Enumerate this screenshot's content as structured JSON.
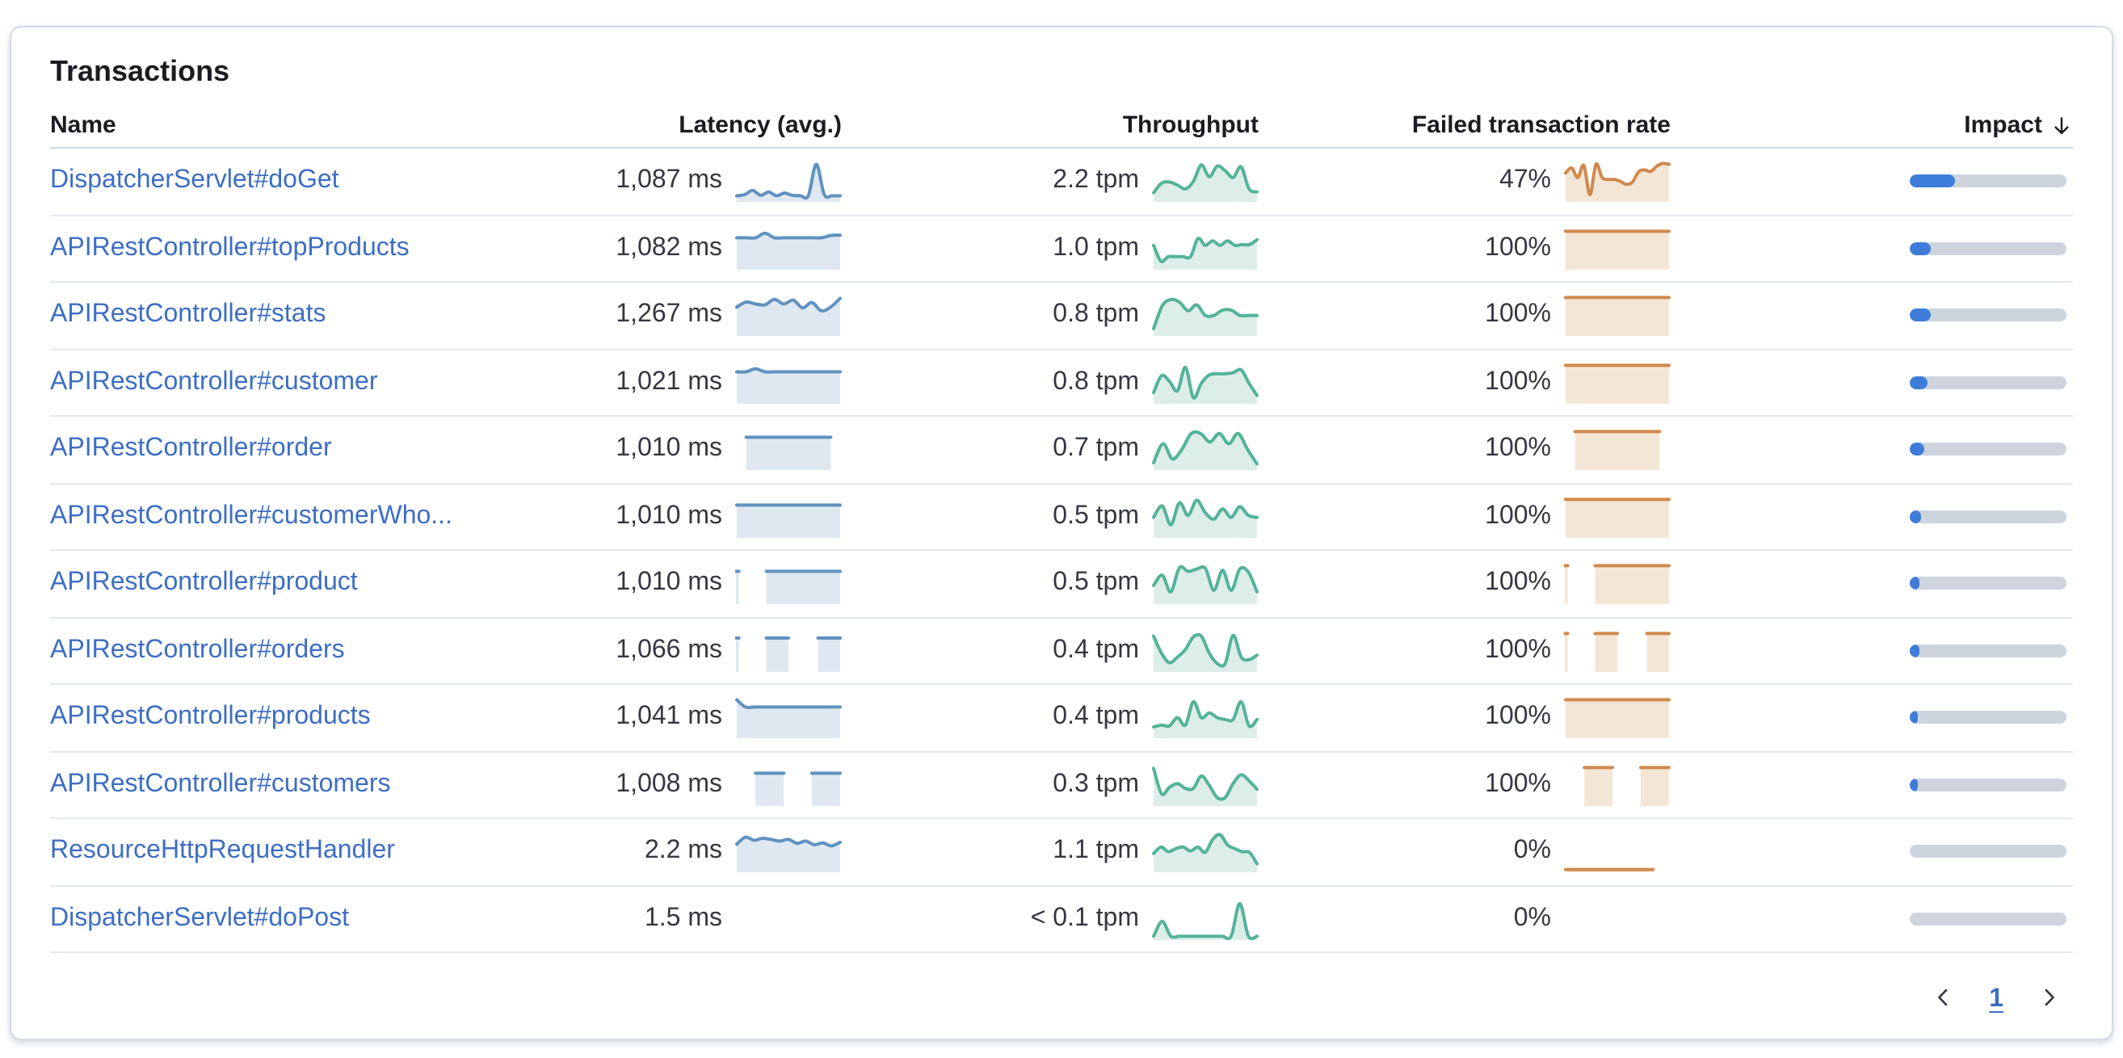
{
  "card": {
    "title": "Transactions"
  },
  "table": {
    "headers": {
      "name": "Name",
      "latency": "Latency (avg.)",
      "throughput": "Throughput",
      "failed": "Failed transaction rate",
      "impact": "Impact"
    },
    "sort": {
      "column": "impact",
      "direction": "descending",
      "icon": "arrow-down"
    },
    "rows": [
      {
        "name": "DispatcherServlet#doGet",
        "latency": "1,087 ms",
        "latency_spark": [
          0.12,
          0.15,
          0.26,
          0.13,
          0.22,
          0.12,
          0.19,
          0.13,
          0.12,
          0.12,
          0.95,
          0.15,
          0.12,
          0.12
        ],
        "throughput": "2.2 tpm",
        "throughput_spark": [
          0.2,
          0.45,
          0.48,
          0.4,
          0.3,
          0.5,
          0.93,
          0.62,
          0.9,
          0.78,
          0.6,
          0.88,
          0.3,
          0.22
        ],
        "failed": "47%",
        "failed_spark": [
          0.72,
          0.85,
          0.6,
          0.92,
          0.15,
          0.95,
          0.6,
          0.55,
          0.55,
          0.5,
          0.42,
          0.48,
          0.75,
          0.8,
          0.76,
          0.9,
          0.97,
          0.95
        ],
        "impact": 29
      },
      {
        "name": "APIRestController#topProducts",
        "latency": "1,082 ms",
        "latency_spark": [
          0.8,
          0.8,
          0.8,
          0.92,
          0.8,
          0.8,
          0.8,
          0.8,
          0.8,
          0.8,
          0.86,
          0.87
        ],
        "throughput": "1.0 tpm",
        "throughput_spark": [
          0.6,
          0.18,
          0.3,
          0.3,
          0.3,
          0.3,
          0.78,
          0.6,
          0.72,
          0.6,
          0.72,
          0.6,
          0.62,
          0.62,
          0.75
        ],
        "failed": "100%",
        "failed_spark": [
          0.97,
          0.97,
          0.97,
          0.97,
          0.97,
          0.97,
          0.97,
          0.97,
          0.97,
          0.97,
          0.97,
          0.97
        ],
        "impact": 13
      },
      {
        "name": "APIRestController#stats",
        "latency": "1,267 ms",
        "latency_spark": [
          0.72,
          0.85,
          0.8,
          0.78,
          0.92,
          0.8,
          0.9,
          0.7,
          0.84,
          0.62,
          0.72,
          0.95
        ],
        "throughput": "0.8 tpm",
        "throughput_spark": [
          0.15,
          0.75,
          0.92,
          0.85,
          0.62,
          0.78,
          0.5,
          0.5,
          0.64,
          0.64,
          0.5,
          0.5,
          0.5
        ],
        "failed": "100%",
        "failed_spark": [
          0.97,
          0.97,
          0.97,
          0.97,
          0.97,
          0.97,
          0.97,
          0.97,
          0.97,
          0.97,
          0.97,
          0.97
        ],
        "impact": 13
      },
      {
        "name": "APIRestController#customer",
        "latency": "1,021 ms",
        "latency_spark": [
          0.8,
          0.8,
          0.88,
          0.8,
          0.8,
          0.8,
          0.8,
          0.8,
          0.8,
          0.8,
          0.8,
          0.8
        ],
        "throughput": "0.8 tpm",
        "throughput_spark": [
          0.25,
          0.7,
          0.55,
          0.3,
          0.92,
          0.12,
          0.5,
          0.72,
          0.75,
          0.75,
          0.78,
          0.85,
          0.5,
          0.18
        ],
        "failed": "100%",
        "failed_spark": [
          0.97,
          0.97,
          0.97,
          0.97,
          0.97,
          0.97,
          0.97,
          0.97,
          0.97,
          0.97,
          0.97,
          0.97
        ],
        "impact": 11.5
      },
      {
        "name": "APIRestController#order",
        "latency": "1,010 ms",
        "latency_spark": [
          null,
          0.82,
          0.82,
          0.82,
          0.82,
          0.82,
          0.82,
          0.82,
          0.82,
          0.82,
          0.82,
          null
        ],
        "throughput": "0.7 tpm",
        "throughput_spark": [
          0.15,
          0.65,
          0.25,
          0.5,
          0.92,
          0.92,
          0.7,
          0.92,
          0.65,
          0.92,
          0.5,
          0.12
        ],
        "failed": "100%",
        "failed_spark": [
          null,
          0.97,
          0.97,
          0.97,
          0.97,
          0.97,
          0.97,
          0.97,
          0.97,
          0.97,
          0.97,
          null
        ],
        "impact": 9
      },
      {
        "name": "APIRestController#customerWho...",
        "latency": "1,010 ms",
        "latency_spark": [
          0.82,
          0.82,
          0.82,
          0.82,
          0.82,
          0.82,
          0.82,
          0.82,
          0.82,
          0.82,
          0.82,
          0.82
        ],
        "throughput": "0.5 tpm",
        "throughput_spark": [
          0.5,
          0.8,
          0.3,
          0.88,
          0.55,
          0.95,
          0.62,
          0.45,
          0.72,
          0.5,
          0.78,
          0.55,
          0.5
        ],
        "failed": "100%",
        "failed_spark": [
          0.97,
          0.97,
          0.97,
          0.97,
          0.97,
          0.97,
          0.97,
          0.97,
          0.97,
          0.97,
          0.97,
          0.97
        ],
        "impact": 7
      },
      {
        "name": "APIRestController#product",
        "latency": "1,010 ms",
        "latency_spark": [
          0.82,
          null,
          null,
          null,
          0.82,
          0.82,
          0.82,
          0.82,
          0.82,
          0.82,
          0.82,
          0.82,
          0.82,
          0.82,
          0.82
        ],
        "throughput": "0.5 tpm",
        "throughput_spark": [
          0.45,
          0.72,
          0.28,
          0.92,
          0.82,
          0.88,
          0.9,
          0.32,
          0.85,
          0.32,
          0.88,
          0.8,
          0.28
        ],
        "failed": "100%",
        "failed_spark": [
          0.97,
          null,
          null,
          null,
          0.97,
          0.97,
          0.97,
          0.97,
          0.97,
          0.97,
          0.97,
          0.97,
          0.97,
          0.97,
          0.97
        ],
        "impact": 6.5
      },
      {
        "name": "APIRestController#orders",
        "latency": "1,066 ms",
        "latency_spark": [
          0.85,
          null,
          null,
          null,
          0.85,
          0.85,
          0.85,
          0.85,
          null,
          null,
          null,
          0.85,
          0.85,
          0.85,
          0.85
        ],
        "throughput": "0.4 tpm",
        "throughput_spark": [
          0.9,
          0.45,
          0.2,
          0.35,
          0.55,
          0.88,
          0.9,
          0.45,
          0.18,
          0.18,
          0.92,
          0.35,
          0.28,
          0.4
        ],
        "failed": "100%",
        "failed_spark": [
          0.97,
          null,
          null,
          null,
          0.97,
          0.97,
          0.97,
          0.97,
          null,
          null,
          null,
          0.97,
          0.97,
          0.97,
          0.97
        ],
        "impact": 6
      },
      {
        "name": "APIRestController#products",
        "latency": "1,041 ms",
        "latency_spark": [
          0.97,
          0.78,
          0.78,
          0.78,
          0.78,
          0.78,
          0.78,
          0.78,
          0.78,
          0.78,
          0.78,
          0.78,
          0.78
        ],
        "throughput": "0.4 tpm",
        "throughput_spark": [
          0.25,
          0.3,
          0.28,
          0.5,
          0.3,
          0.92,
          0.5,
          0.62,
          0.5,
          0.45,
          0.45,
          0.92,
          0.28,
          0.45
        ],
        "failed": "100%",
        "failed_spark": [
          0.97,
          0.97,
          0.97,
          0.97,
          0.97,
          0.97,
          0.97,
          0.97,
          0.97,
          0.97,
          0.97,
          0.97
        ],
        "impact": 5.5
      },
      {
        "name": "APIRestController#customers",
        "latency": "1,008 ms",
        "latency_spark": [
          null,
          null,
          0.82,
          0.82,
          0.82,
          0.82,
          null,
          null,
          0.82,
          0.82,
          0.82,
          0.82
        ],
        "throughput": "0.3 tpm",
        "throughput_spark": [
          0.95,
          0.28,
          0.45,
          0.55,
          0.42,
          0.42,
          0.75,
          0.5,
          0.18,
          0.18,
          0.55,
          0.78,
          0.62,
          0.4
        ],
        "failed": "100%",
        "failed_spark": [
          null,
          null,
          0.97,
          0.97,
          0.97,
          0.97,
          null,
          null,
          0.97,
          0.97,
          0.97,
          0.97
        ],
        "impact": 5
      },
      {
        "name": "ResourceHttpRequestHandler",
        "latency": "2.2 ms",
        "latency_spark": [
          0.7,
          0.88,
          0.8,
          0.85,
          0.82,
          0.78,
          0.82,
          0.72,
          0.78,
          0.68,
          0.73,
          0.65,
          0.75
        ],
        "throughput": "1.1 tpm",
        "throughput_spark": [
          0.45,
          0.62,
          0.5,
          0.58,
          0.62,
          0.52,
          0.62,
          0.48,
          0.82,
          0.95,
          0.68,
          0.58,
          0.5,
          0.48,
          0.18
        ],
        "failed": "0%",
        "failed_spark": [
          0.03,
          0.03,
          0.03,
          0.03,
          0.03,
          0.03,
          0.03,
          0.03,
          0.03,
          0.03,
          0.03,
          0.03,
          null,
          null
        ],
        "impact": 0
      },
      {
        "name": "DispatcherServlet#doPost",
        "latency": "1.5 ms",
        "latency_spark": [],
        "throughput": "< 0.1 tpm",
        "throughput_spark": [
          0.06,
          0.45,
          0.06,
          0.06,
          0.06,
          0.06,
          0.06,
          0.06,
          0.06,
          0.06,
          0.92,
          0.06,
          0.06
        ],
        "failed": "0%",
        "failed_spark": [],
        "impact": 0
      }
    ]
  },
  "pagination": {
    "page": "1"
  },
  "colors": {
    "link": "#3D6EC4",
    "text": "#343741",
    "header_text": "#1A1C21",
    "latency_line": "#6092C0",
    "latency_fill": "#DFE8F1",
    "throughput_line": "#54B399",
    "throughput_fill": "#DCEEE7",
    "failed_line": "#D0894B",
    "failed_fill": "#F4E6D6",
    "impact_fill": "#3E7CD9",
    "impact_track": "#CDD4DE"
  }
}
